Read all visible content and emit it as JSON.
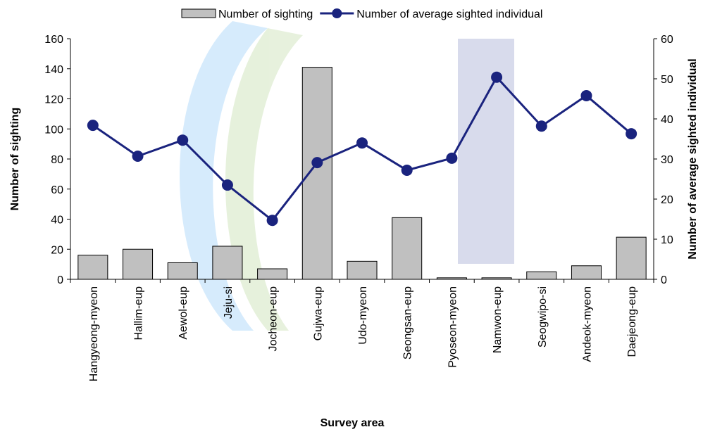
{
  "chart_data": {
    "type": "bar-line",
    "x_label": "Survey area",
    "y_label": "Number of sighting",
    "y2_label": "Number of average sighted individual",
    "categories": [
      "Hangyeong-myeon",
      "Hallim-eup",
      "Aewol-eup",
      "Jeju-si",
      "Jocheon-eup",
      "Gujwa-eup",
      "Udo-myeon",
      "Seongsan-eup",
      "Pyoseon-myeon",
      "Namwon-eup",
      "Seogwipo-si",
      "Andeok-myeon",
      "Daejeong-eup"
    ],
    "series": [
      {
        "name": "Number of sighting",
        "type": "bar",
        "color": "#c0c0c0",
        "values": [
          16,
          20,
          11,
          22,
          7,
          141,
          12,
          41,
          1,
          1,
          5,
          9,
          28
        ]
      },
      {
        "name": "Number of average sighted individual",
        "type": "line",
        "axis": "y2",
        "color": "#1a237e",
        "values": [
          38.4,
          30.7,
          34.7,
          23.5,
          14.7,
          29.1,
          34,
          27.2,
          30.2,
          50.4,
          38.2,
          45.8,
          36.3
        ]
      }
    ],
    "ylim": [
      0,
      160
    ],
    "yticks": [
      0,
      20,
      40,
      60,
      80,
      100,
      120,
      140,
      160
    ],
    "y2lim": [
      0,
      60
    ],
    "y2ticks": [
      0,
      10,
      20,
      30,
      40,
      50,
      60
    ],
    "legend": "top"
  }
}
